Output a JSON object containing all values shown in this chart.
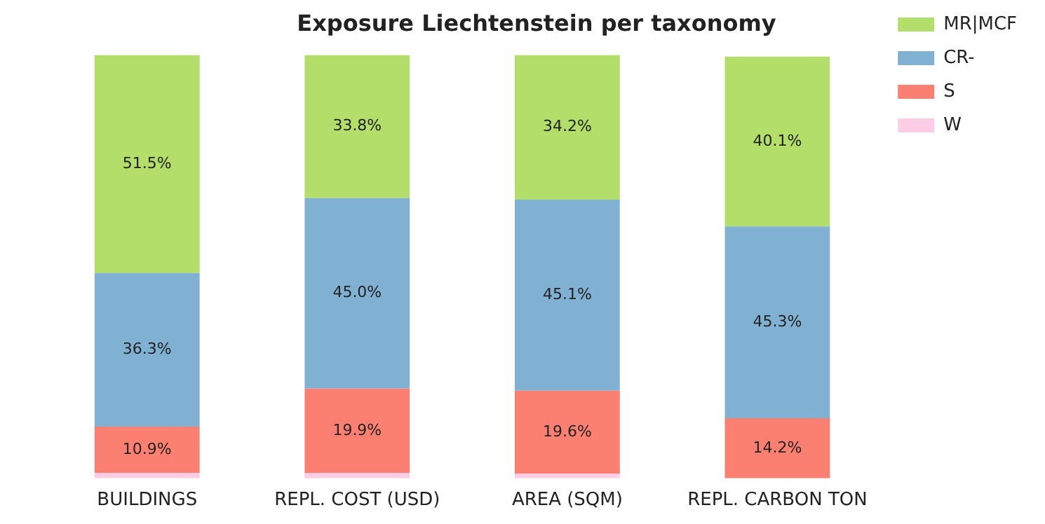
{
  "chart_data": {
    "type": "bar",
    "title": "Exposure Liechtenstein per taxonomy",
    "categories": [
      "BUILDINGS",
      "REPL. COST (USD)",
      "AREA (SQM)",
      "REPL. CARBON TON"
    ],
    "stacked": true,
    "legend": "top right",
    "series": [
      {
        "name": "W",
        "color": "#fccde5",
        "values": [
          1.3,
          1.3,
          1.1,
          null
        ],
        "value_labels": [
          null,
          null,
          null,
          null
        ]
      },
      {
        "name": "S",
        "color": "#fb8072",
        "values": [
          10.9,
          19.9,
          19.6,
          14.2
        ],
        "value_labels": [
          "10.9%",
          "19.9%",
          "19.6%",
          "14.2%"
        ]
      },
      {
        "name": "CR-",
        "color": "#80b1d3",
        "values": [
          36.3,
          45.0,
          45.1,
          45.3
        ],
        "value_labels": [
          "36.3%",
          "45.0%",
          "45.1%",
          "45.3%"
        ]
      },
      {
        "name": "MR|MCF",
        "color": "#b3de69",
        "values": [
          51.5,
          33.8,
          34.2,
          40.1
        ],
        "value_labels": [
          "51.5%",
          "33.8%",
          "34.2%",
          "40.1%"
        ]
      }
    ]
  }
}
